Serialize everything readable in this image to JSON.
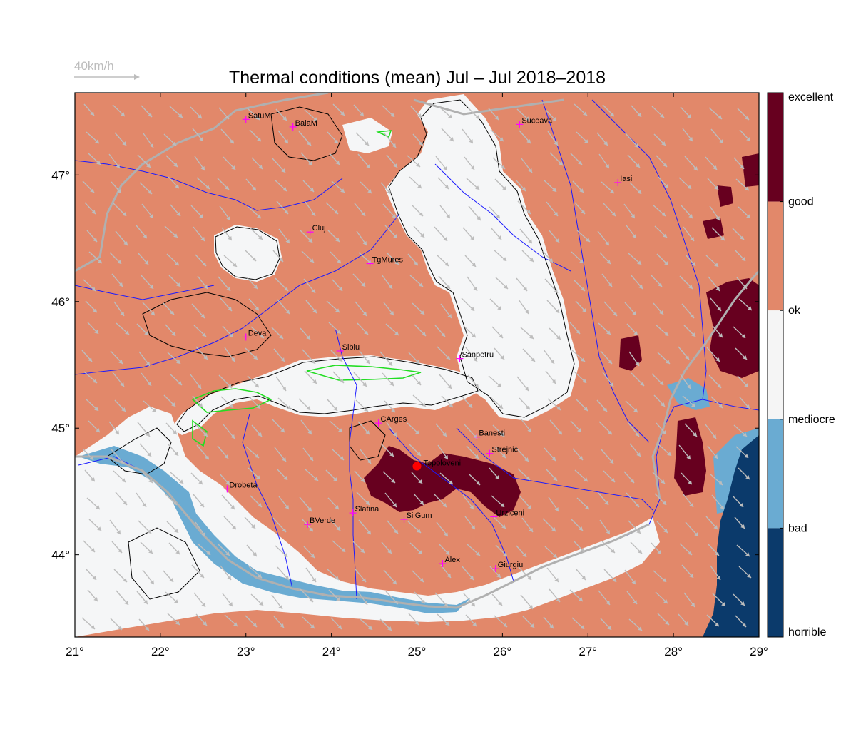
{
  "title": "Thermal conditions (mean) Jul – Jul  2018–2018",
  "wind_reference": {
    "label": "40km/h",
    "color": "#bdbdbd"
  },
  "map": {
    "lon_range": [
      21,
      29
    ],
    "lat_range": [
      43.35,
      47.65
    ],
    "x_ticks": [
      {
        "value": 21,
        "label": "21°"
      },
      {
        "value": 22,
        "label": "22°"
      },
      {
        "value": 23,
        "label": "23°"
      },
      {
        "value": 24,
        "label": "24°"
      },
      {
        "value": 25,
        "label": "25°"
      },
      {
        "value": 26,
        "label": "26°"
      },
      {
        "value": 27,
        "label": "27°"
      },
      {
        "value": 28,
        "label": "28°"
      },
      {
        "value": 29,
        "label": "29°"
      }
    ],
    "y_ticks": [
      {
        "value": 44,
        "label": "44°"
      },
      {
        "value": 45,
        "label": "45°"
      },
      {
        "value": 46,
        "label": "46°"
      },
      {
        "value": 47,
        "label": "47°"
      }
    ],
    "background_class": "ok",
    "cities": [
      {
        "name": "SatuM",
        "lon": 23.0,
        "lat": 47.44
      },
      {
        "name": "BaiaM",
        "lon": 23.55,
        "lat": 47.38
      },
      {
        "name": "Suceava",
        "lon": 26.2,
        "lat": 47.4
      },
      {
        "name": "Iasi",
        "lon": 27.35,
        "lat": 46.94
      },
      {
        "name": "Cluj",
        "lon": 23.75,
        "lat": 46.55
      },
      {
        "name": "TgMures",
        "lon": 24.45,
        "lat": 46.3
      },
      {
        "name": "Deva",
        "lon": 23.0,
        "lat": 45.72
      },
      {
        "name": "Sibiu",
        "lon": 24.1,
        "lat": 45.61
      },
      {
        "name": "Sanpetru",
        "lon": 25.5,
        "lat": 45.55
      },
      {
        "name": "CArges",
        "lon": 24.55,
        "lat": 45.04
      },
      {
        "name": "Banesti",
        "lon": 25.7,
        "lat": 44.93
      },
      {
        "name": "Strejnic",
        "lon": 25.85,
        "lat": 44.8
      },
      {
        "name": "Drobeta",
        "lon": 22.78,
        "lat": 44.52
      },
      {
        "name": "Slatina",
        "lon": 24.25,
        "lat": 44.33
      },
      {
        "name": "SilGum",
        "lon": 24.85,
        "lat": 44.28
      },
      {
        "name": "Urziceni",
        "lon": 25.9,
        "lat": 44.3
      },
      {
        "name": "BVerde",
        "lon": 23.72,
        "lat": 44.24
      },
      {
        "name": "Alex",
        "lon": 25.3,
        "lat": 43.93
      },
      {
        "name": "Giurgiu",
        "lon": 25.92,
        "lat": 43.89
      }
    ],
    "marker": {
      "name": "Topoloveni",
      "lon": 25.0,
      "lat": 44.7,
      "color": "#ff0000"
    }
  },
  "legend": {
    "levels": [
      {
        "label": "excellent",
        "color": "#67001f"
      },
      {
        "label": "good",
        "color": "#e2886a"
      },
      {
        "label": "ok",
        "color": "#f5f5f5"
      },
      {
        "label": "mediocre",
        "color": "#6aabd2"
      },
      {
        "label": "bad",
        "color": "#0b3a6b"
      },
      {
        "label": "horrible",
        "color": "#0b3a6b"
      }
    ]
  },
  "colors": {
    "land": "#e2886a",
    "mountain": "#f5f6f7",
    "excellent": "#67001f",
    "mediocre": "#6aabd2",
    "sea": "#0b3a6b",
    "river": "#1a1aff",
    "border": "#b0b0b0",
    "contour": "#000000",
    "city_marker": "#ff00ff",
    "wind": "#bdbdbd"
  }
}
